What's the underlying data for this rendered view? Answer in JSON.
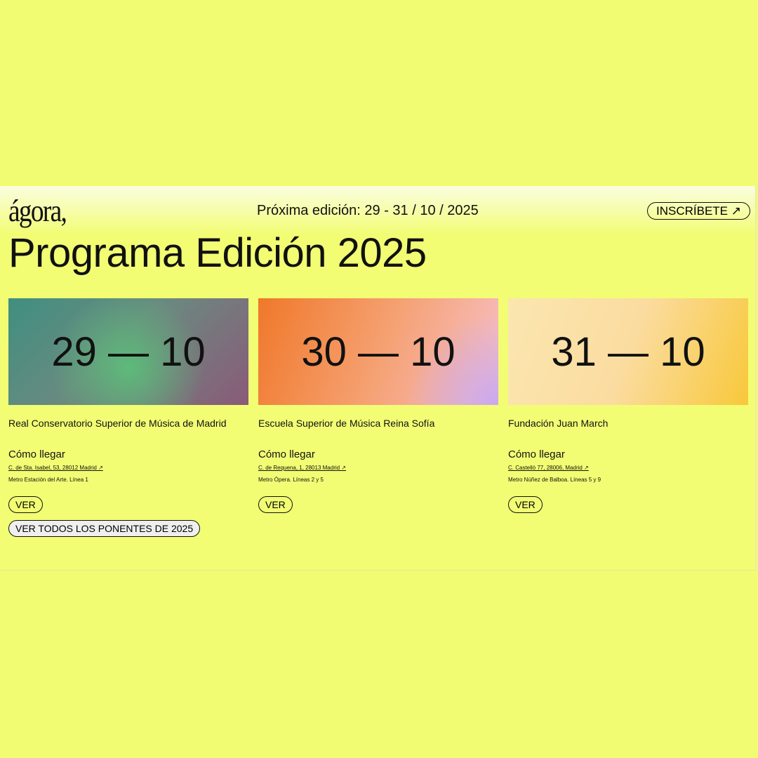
{
  "header": {
    "logo": "ágora,",
    "next_edition": "Próxima edición: 29 - 31 / 10 / 2025",
    "register_label": "INSCRÍBETE ↗"
  },
  "page_title": "Programa Edición 2025",
  "days": [
    {
      "date": "29 — 10",
      "venue": "Real Conservatorio Superior de Música de Madrid",
      "directions_label": "Cómo llegar",
      "address": "C. de Sta. Isabel, 53, 28012 Madrid ↗",
      "metro": "Metro Estación del Arte. Línea 1",
      "button": "VER"
    },
    {
      "date": "30 — 10",
      "venue": "Escuela Superior de Música Reina Sofía",
      "directions_label": "Cómo llegar",
      "address": "C. de Requena, 1, 28013 Madrid ↗",
      "metro": "Metro Ópera. Líneas 2 y 5",
      "button": "VER"
    },
    {
      "date": "31 — 10",
      "venue": "Fundación Juan March",
      "directions_label": "Cómo llegar",
      "address": "C. Castelló 77, 28006, Madrid ↗",
      "metro": "Metro Núñez de Balboa. Líneas 5 y 9",
      "button": "VER"
    }
  ],
  "all_speakers_label": "VER TODOS LOS PONENTES DE 2025",
  "colors": {
    "background": "#f2fc72",
    "text": "#111111"
  }
}
